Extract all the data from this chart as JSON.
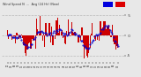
{
  "title": "Wind Speed N  ...  Avg (24 Hr) (New)",
  "legend_colors": [
    "#0000dd",
    "#dd0000"
  ],
  "bg_color": "#e8e8e8",
  "plot_bg": "#e8e8e8",
  "grid_color": "#bbbbbb",
  "ylim": [
    -6.5,
    6.5
  ],
  "yticks": [
    -5,
    0,
    5
  ],
  "ytick_labels": [
    "-5",
    " 0",
    " 5"
  ],
  "bar_color": "#cc0000",
  "dot_color": "#0000cc",
  "n_points": 96,
  "seed": 7,
  "figsize": [
    1.6,
    0.87
  ],
  "dpi": 100
}
